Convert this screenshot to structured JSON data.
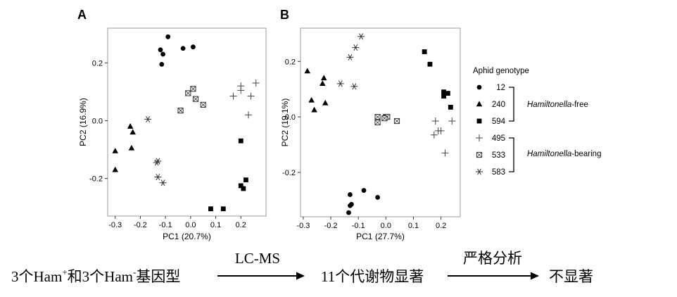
{
  "chart_data": [
    {
      "type": "scatter",
      "panel": "A",
      "xlabel": "PC1 (20.7%)",
      "ylabel": "PC2 (16.9%)",
      "xlim": [
        -0.33,
        0.3
      ],
      "ylim": [
        -0.33,
        0.32
      ],
      "xticks": [
        "-0.3",
        "-0.2",
        "-0.1",
        "0.0",
        "0.1",
        "0.2"
      ],
      "yticks": [
        "-0.2",
        "0.0",
        "0.2"
      ],
      "series": [
        {
          "name": "12",
          "marker": "circle",
          "points": [
            [
              -0.09,
              0.29
            ],
            [
              -0.12,
              0.245
            ],
            [
              -0.11,
              0.23
            ],
            [
              -0.115,
              0.195
            ],
            [
              -0.03,
              0.25
            ],
            [
              0.01,
              0.255
            ]
          ]
        },
        {
          "name": "240",
          "marker": "triangle",
          "points": [
            [
              -0.3,
              -0.105
            ],
            [
              -0.3,
              -0.17
            ],
            [
              -0.24,
              -0.02
            ],
            [
              -0.23,
              -0.04
            ],
            [
              -0.235,
              -0.095
            ]
          ]
        },
        {
          "name": "594",
          "marker": "square",
          "points": [
            [
              0.2,
              -0.07
            ],
            [
              0.2,
              -0.225
            ],
            [
              0.22,
              -0.205
            ],
            [
              0.21,
              -0.235
            ],
            [
              0.08,
              -0.305
            ],
            [
              0.13,
              -0.305
            ]
          ]
        },
        {
          "name": "495",
          "marker": "plus",
          "points": [
            [
              0.2,
              0.12
            ],
            [
              0.26,
              0.13
            ],
            [
              0.2,
              0.105
            ],
            [
              0.17,
              0.085
            ],
            [
              0.24,
              0.085
            ],
            [
              0.23,
              0.02
            ]
          ]
        },
        {
          "name": "533",
          "marker": "boxx",
          "points": [
            [
              -0.01,
              0.095
            ],
            [
              0.01,
              0.11
            ],
            [
              0.02,
              0.075
            ],
            [
              0.05,
              0.055
            ],
            [
              -0.04,
              0.035
            ]
          ]
        },
        {
          "name": "583",
          "marker": "asterisk",
          "points": [
            [
              -0.17,
              0.005
            ],
            [
              -0.13,
              -0.14
            ],
            [
              -0.135,
              -0.145
            ],
            [
              -0.13,
              -0.195
            ],
            [
              -0.11,
              -0.215
            ]
          ]
        }
      ]
    },
    {
      "type": "scatter",
      "panel": "B",
      "xlabel": "PC1 (27.7%)",
      "ylabel": "PC2 (19.1%)",
      "xlim": [
        -0.31,
        0.27
      ],
      "ylim": [
        -0.36,
        0.32
      ],
      "xticks": [
        "-0.3",
        "-0.2",
        "-0.1",
        "0.0",
        "0.1",
        "0.2"
      ],
      "yticks": [
        "-0.2",
        "0.0",
        "0.2"
      ],
      "series": [
        {
          "name": "12",
          "marker": "circle",
          "points": [
            [
              -0.13,
              -0.28
            ],
            [
              -0.08,
              -0.265
            ],
            [
              -0.03,
              -0.29
            ],
            [
              -0.125,
              -0.315
            ],
            [
              -0.13,
              -0.32
            ],
            [
              -0.135,
              -0.345
            ]
          ]
        },
        {
          "name": "240",
          "marker": "triangle",
          "points": [
            [
              -0.285,
              0.165
            ],
            [
              -0.225,
              0.14
            ],
            [
              -0.23,
              0.12
            ],
            [
              -0.27,
              0.06
            ],
            [
              -0.22,
              0.05
            ],
            [
              -0.26,
              0.025
            ]
          ]
        },
        {
          "name": "594",
          "marker": "square",
          "points": [
            [
              0.14,
              0.235
            ],
            [
              0.16,
              0.19
            ],
            [
              0.21,
              0.09
            ],
            [
              0.225,
              0.085
            ],
            [
              0.21,
              0.075
            ],
            [
              0.235,
              0.035
            ]
          ]
        },
        {
          "name": "495",
          "marker": "plus",
          "points": [
            [
              0.18,
              -0.015
            ],
            [
              0.24,
              -0.015
            ],
            [
              0.19,
              -0.05
            ],
            [
              0.2,
              -0.05
            ],
            [
              0.175,
              -0.065
            ],
            [
              0.215,
              -0.13
            ]
          ]
        },
        {
          "name": "533",
          "marker": "boxx",
          "points": [
            [
              -0.03,
              0.0
            ],
            [
              0.0,
              0.0
            ],
            [
              0.005,
              0.0
            ],
            [
              -0.005,
              -0.005
            ],
            [
              -0.03,
              -0.02
            ],
            [
              0.04,
              -0.015
            ]
          ]
        },
        {
          "name": "583",
          "marker": "asterisk",
          "points": [
            [
              -0.09,
              0.29
            ],
            [
              -0.11,
              0.25
            ],
            [
              -0.13,
              0.215
            ],
            [
              -0.165,
              0.12
            ],
            [
              -0.115,
              0.11
            ]
          ]
        }
      ]
    }
  ],
  "legend": {
    "title": "Aphid genotype",
    "entries": [
      {
        "label": "12",
        "marker": "circle"
      },
      {
        "label": "240",
        "marker": "triangle"
      },
      {
        "label": "594",
        "marker": "square"
      },
      {
        "label": "495",
        "marker": "plus"
      },
      {
        "label": "533",
        "marker": "boxx"
      },
      {
        "label": "583",
        "marker": "asterisk"
      }
    ],
    "groups": [
      {
        "italic": "Hamiltonella",
        "suffix": "-free"
      },
      {
        "italic": "Hamiltonella",
        "suffix": "-bearing"
      }
    ]
  },
  "flow": {
    "step1_a": "3个Ham",
    "step1_sup": "+",
    "step1_b": "和3个Ham",
    "step1_sup2": "-",
    "step1_c": "基因型",
    "arrow1_label": "LC-MS",
    "step2": "11个代谢物显著",
    "arrow2_label": "严格分析",
    "step3": "不显著"
  }
}
